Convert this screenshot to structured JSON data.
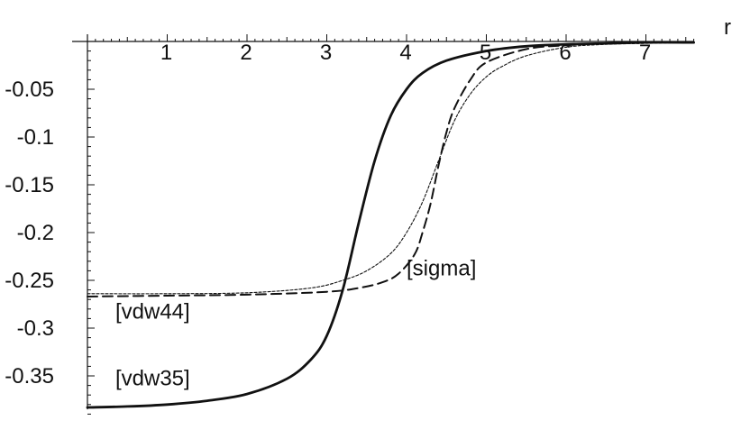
{
  "chart_data": {
    "type": "line",
    "title": "",
    "xlabel": "r",
    "ylabel": "",
    "xlim": [
      0,
      7.6
    ],
    "ylim": [
      -0.385,
      0.0
    ],
    "grid": false,
    "x_ticks": [
      {
        "value": 1,
        "label": "1"
      },
      {
        "value": 2,
        "label": "2"
      },
      {
        "value": 3,
        "label": "3"
      },
      {
        "value": 4,
        "label": "4"
      },
      {
        "value": 5,
        "label": "5"
      },
      {
        "value": 6,
        "label": "6"
      },
      {
        "value": 7,
        "label": "7"
      }
    ],
    "y_ticks": [
      {
        "value": -0.05,
        "label": "-0.05"
      },
      {
        "value": -0.1,
        "label": "-0.1"
      },
      {
        "value": -0.15,
        "label": "-0.15"
      },
      {
        "value": -0.2,
        "label": "-0.2"
      },
      {
        "value": -0.25,
        "label": "-0.25"
      },
      {
        "value": -0.3,
        "label": "-0.3"
      },
      {
        "value": -0.35,
        "label": "-0.35"
      }
    ],
    "series": [
      {
        "name": "[vdw35]",
        "style": "solid",
        "color": "#111111",
        "x": [
          0.0,
          0.5,
          1.0,
          1.5,
          2.0,
          2.5,
          2.8,
          3.0,
          3.2,
          3.4,
          3.6,
          3.8,
          4.0,
          4.2,
          4.5,
          5.0,
          5.5,
          6.0,
          6.5,
          7.0,
          7.6
        ],
        "y": [
          -0.383,
          -0.382,
          -0.38,
          -0.376,
          -0.369,
          -0.353,
          -0.333,
          -0.308,
          -0.26,
          -0.19,
          -0.125,
          -0.078,
          -0.05,
          -0.033,
          -0.02,
          -0.01,
          -0.005,
          -0.003,
          -0.002,
          -0.001,
          -0.001
        ]
      },
      {
        "name": "[sigma]",
        "style": "dashed",
        "color": "#111111",
        "x": [
          0.0,
          1.0,
          2.0,
          3.0,
          3.4,
          3.7,
          3.9,
          4.1,
          4.2,
          4.3,
          4.4,
          4.5,
          4.6,
          4.8,
          5.0,
          5.5,
          6.0,
          6.5,
          7.0,
          7.6
        ],
        "y": [
          -0.267,
          -0.266,
          -0.265,
          -0.262,
          -0.258,
          -0.252,
          -0.243,
          -0.223,
          -0.2,
          -0.17,
          -0.13,
          -0.095,
          -0.07,
          -0.04,
          -0.022,
          -0.008,
          -0.004,
          -0.002,
          -0.001,
          -0.001
        ]
      },
      {
        "name": "[vdw44]",
        "style": "dotted",
        "color": "#111111",
        "x": [
          0.0,
          1.0,
          2.0,
          2.8,
          3.2,
          3.5,
          3.8,
          4.0,
          4.2,
          4.4,
          4.6,
          4.8,
          5.0,
          5.2,
          5.5,
          6.0,
          6.5,
          7.0,
          7.6
        ],
        "y": [
          -0.264,
          -0.264,
          -0.263,
          -0.258,
          -0.25,
          -0.24,
          -0.222,
          -0.2,
          -0.168,
          -0.125,
          -0.083,
          -0.055,
          -0.037,
          -0.026,
          -0.015,
          -0.006,
          -0.003,
          -0.002,
          -0.001
        ]
      }
    ],
    "annotations": [
      {
        "text": "[vdw35]",
        "x": 0.35,
        "y": -0.36
      },
      {
        "text": "[vdw44]",
        "x": 0.35,
        "y": -0.29
      },
      {
        "text": "[sigma]",
        "x": 4.0,
        "y": -0.245
      }
    ]
  }
}
